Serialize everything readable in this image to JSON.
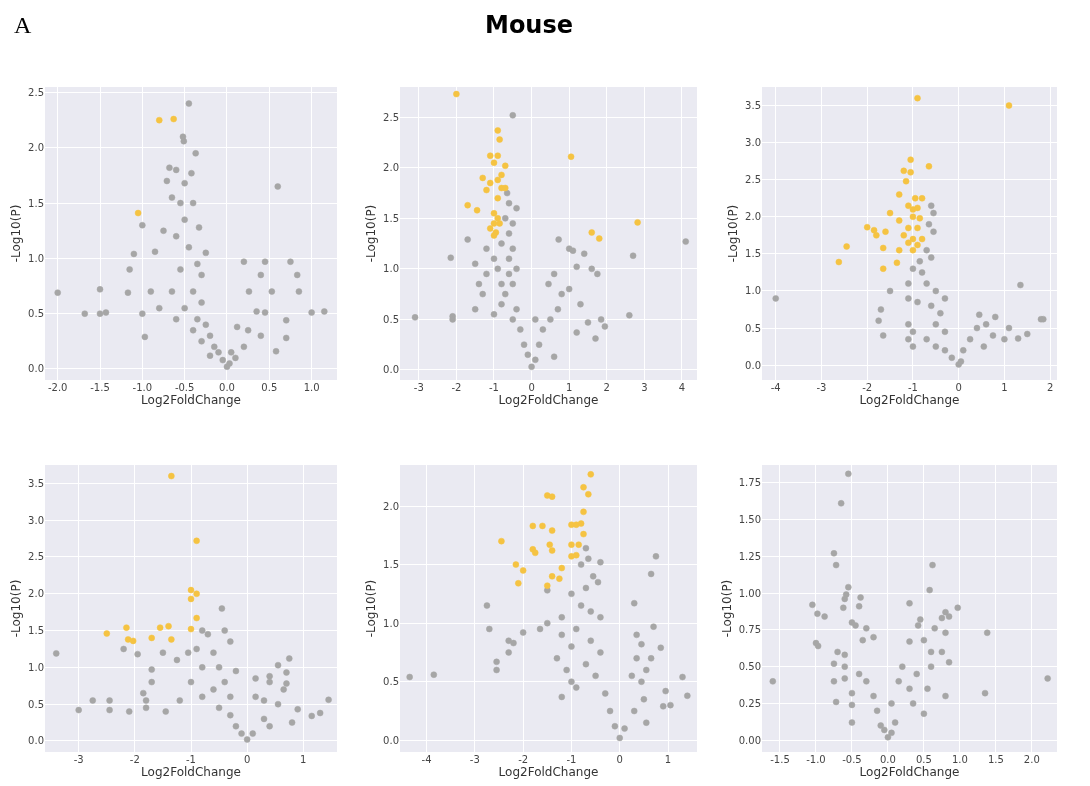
{
  "chart_data": [
    {
      "type": "scatter",
      "annotations": [
        "A"
      ],
      "xlabel": "Log2FoldChange",
      "ylabel": "-Log10(P)",
      "grid": true,
      "marker": "circle",
      "xlim": [
        -2.15,
        1.3
      ],
      "ylim": [
        -0.1,
        2.55
      ],
      "xticks": [
        {
          "value": -2,
          "label": "-2.0"
        },
        {
          "value": -1.5,
          "label": "-1.5"
        },
        {
          "value": -1,
          "label": "-1.0"
        },
        {
          "value": -0.5,
          "label": "-0.5"
        },
        {
          "value": 0,
          "label": "0.0"
        },
        {
          "value": 0.5,
          "label": "0.5"
        },
        {
          "value": 1,
          "label": "1.0"
        }
      ],
      "yticks": [
        {
          "value": 0,
          "label": "0.0"
        },
        0.5,
        {
          "value": 1,
          "label": "1.0"
        },
        1.5,
        {
          "value": 2,
          "label": "2.0"
        },
        2.5
      ],
      "series": [
        {
          "color": "#a6a6a6",
          "x": [
            -0.45,
            -0.52,
            -0.51,
            -0.37,
            -0.68,
            -0.6,
            -0.42,
            -0.71,
            -0.5,
            0.6,
            -0.65,
            -0.55,
            -0.4,
            -0.5,
            -1.0,
            -0.75,
            -0.33,
            -0.6,
            -0.45,
            -1.1,
            -0.85,
            -0.25,
            -0.35,
            0.2,
            0.45,
            0.75,
            -1.15,
            -0.55,
            -0.3,
            0.4,
            0.83,
            -2.0,
            -1.5,
            -1.17,
            -0.9,
            -0.65,
            -0.4,
            0.26,
            0.53,
            0.85,
            -0.3,
            -0.8,
            -0.5,
            -1.68,
            -1.5,
            -1.43,
            -1.0,
            -0.6,
            -0.35,
            -0.25,
            0.35,
            1.0,
            1.15,
            0.45,
            0.12,
            -0.4,
            -0.2,
            0.25,
            0.7,
            -0.97,
            -0.3,
            -0.15,
            0.4,
            0.7,
            0.58,
            -0.1,
            0.05,
            -0.05,
            0.0,
            0.03,
            -0.2,
            0.1,
            0.2
          ],
          "values": [
            2.4,
            2.1,
            2.06,
            1.95,
            1.82,
            1.8,
            1.77,
            1.7,
            1.68,
            1.65,
            1.55,
            1.5,
            1.5,
            1.35,
            1.3,
            1.25,
            1.28,
            1.2,
            1.1,
            1.04,
            1.06,
            1.05,
            0.95,
            0.97,
            0.97,
            0.97,
            0.9,
            0.9,
            0.85,
            0.85,
            0.85,
            0.69,
            0.72,
            0.69,
            0.7,
            0.7,
            0.7,
            0.7,
            0.7,
            0.7,
            0.6,
            0.55,
            0.55,
            0.5,
            0.5,
            0.51,
            0.5,
            0.45,
            0.45,
            0.4,
            0.52,
            0.51,
            0.52,
            0.51,
            0.38,
            0.35,
            0.3,
            0.35,
            0.44,
            0.29,
            0.25,
            0.2,
            0.3,
            0.28,
            0.16,
            0.15,
            0.15,
            0.08,
            0.02,
            0.05,
            0.12,
            0.1,
            0.2
          ]
        },
        {
          "color": "#f5c342",
          "x": [
            -0.8,
            -0.63,
            -1.05
          ],
          "values": [
            2.25,
            2.26,
            1.41
          ]
        }
      ]
    },
    {
      "type": "scatter",
      "title": "Mouse",
      "xlabel": "Log2FoldChange",
      "ylabel": "-Log10(P)",
      "grid": true,
      "marker": "circle",
      "xlim": [
        -3.5,
        4.4
      ],
      "ylim": [
        -0.1,
        2.8
      ],
      "xticks": [
        -3,
        -2,
        -1,
        0,
        1,
        2,
        3,
        4
      ],
      "yticks": [
        {
          "value": 0,
          "label": "0.0"
        },
        0.5,
        {
          "value": 1,
          "label": "1.0"
        },
        1.5,
        {
          "value": 2,
          "label": "2.0"
        },
        2.5
      ],
      "series": [
        {
          "color": "#a6a6a6",
          "x": [
            -0.5,
            -0.65,
            -0.6,
            -0.4,
            -0.7,
            -0.5,
            -0.6,
            -1.7,
            -0.8,
            0.72,
            4.1,
            -1.2,
            -0.5,
            1.0,
            1.1,
            -2.15,
            -1.0,
            -0.6,
            2.7,
            1.4,
            -1.5,
            -0.9,
            -0.4,
            1.2,
            1.6,
            -1.2,
            -0.6,
            0.6,
            1.75,
            -1.4,
            -0.8,
            -0.5,
            0.45,
            1.0,
            -1.3,
            -0.7,
            0.8,
            1.3,
            -1.5,
            -0.8,
            -0.4,
            0.7,
            -3.1,
            -2.1,
            -2.1,
            -1.0,
            -0.5,
            0.5,
            0.1,
            1.5,
            1.85,
            2.6,
            1.95,
            -0.3,
            0.3,
            1.2,
            1.7,
            -0.2,
            0.2,
            -0.1,
            0.1,
            0.0,
            0.6
          ],
          "values": [
            2.52,
            1.75,
            1.65,
            1.6,
            1.5,
            1.45,
            1.35,
            1.29,
            1.25,
            1.29,
            1.27,
            1.2,
            1.2,
            1.2,
            1.18,
            1.11,
            1.1,
            1.1,
            1.13,
            1.15,
            1.05,
            1.0,
            1.0,
            1.02,
            1.0,
            0.95,
            0.95,
            0.95,
            0.95,
            0.85,
            0.85,
            0.85,
            0.85,
            0.8,
            0.75,
            0.75,
            0.75,
            0.65,
            0.6,
            0.65,
            0.6,
            0.6,
            0.52,
            0.53,
            0.5,
            0.55,
            0.5,
            0.5,
            0.5,
            0.47,
            0.5,
            0.54,
            0.43,
            0.4,
            0.4,
            0.37,
            0.31,
            0.25,
            0.25,
            0.15,
            0.1,
            0.03,
            0.13
          ]
        },
        {
          "color": "#f5c342",
          "x": [
            -2.0,
            -0.9,
            -0.85,
            1.05,
            -1.1,
            -0.9,
            -1.0,
            -0.7,
            -1.3,
            -0.8,
            -1.1,
            -0.9,
            -0.8,
            -0.7,
            -1.2,
            -0.9,
            -1.7,
            -1.45,
            -1.0,
            -0.9,
            -1.0,
            -0.85,
            -1.1,
            -0.95,
            -1.0,
            2.82,
            1.6,
            1.8
          ],
          "values": [
            2.73,
            2.37,
            2.28,
            2.11,
            2.12,
            2.12,
            2.05,
            2.02,
            1.9,
            1.93,
            1.85,
            1.88,
            1.8,
            1.8,
            1.78,
            1.7,
            1.63,
            1.58,
            1.55,
            1.5,
            1.45,
            1.45,
            1.4,
            1.36,
            1.33,
            1.46,
            1.36,
            1.3
          ]
        }
      ]
    },
    {
      "type": "scatter",
      "xlabel": "Log2FoldChange",
      "ylabel": "-Log10(P)",
      "grid": true,
      "marker": "circle",
      "xlim": [
        -4.3,
        2.15
      ],
      "ylim": [
        -0.2,
        3.75
      ],
      "xticks": [
        -4,
        -3,
        -2,
        -1,
        0,
        1,
        2
      ],
      "yticks": [
        {
          "value": 0,
          "label": "0.0"
        },
        0.5,
        {
          "value": 1,
          "label": "1.0"
        },
        1.5,
        {
          "value": 2,
          "label": "2.0"
        },
        2.5,
        {
          "value": 3,
          "label": "3.0"
        },
        3.5
      ],
      "series": [
        {
          "color": "#a6a6a6",
          "x": [
            -0.6,
            -0.55,
            -0.65,
            -0.55,
            -0.7,
            -0.85,
            -0.6,
            -1.0,
            -0.8,
            -1.1,
            -0.7,
            -0.5,
            1.35,
            -1.5,
            -4.0,
            -1.1,
            -0.3,
            -0.9,
            -0.6,
            -1.7,
            -0.4,
            0.45,
            -1.75,
            -1.1,
            -0.5,
            0.8,
            1.8,
            1.85,
            0.6,
            -1.0,
            -0.3,
            0.4,
            1.1,
            -1.65,
            -1.1,
            -0.7,
            0.25,
            0.75,
            1.5,
            1.3,
            1.0,
            -1.0,
            -0.5,
            0.55,
            -0.3,
            0.1,
            -0.15,
            0.05,
            0.0
          ],
          "values": [
            2.15,
            2.05,
            1.9,
            1.8,
            1.55,
            1.4,
            1.45,
            1.3,
            1.25,
            1.1,
            1.1,
            1.0,
            1.08,
            1.0,
            0.9,
            0.9,
            0.9,
            0.85,
            0.8,
            0.75,
            0.7,
            0.68,
            0.6,
            0.55,
            0.55,
            0.65,
            0.62,
            0.62,
            0.55,
            0.45,
            0.45,
            0.5,
            0.5,
            0.4,
            0.35,
            0.35,
            0.35,
            0.4,
            0.42,
            0.36,
            0.35,
            0.25,
            0.25,
            0.25,
            0.2,
            0.2,
            0.1,
            0.05,
            0.01
          ]
        },
        {
          "color": "#f5c342",
          "x": [
            -0.9,
            1.1,
            -1.05,
            -0.65,
            -1.2,
            -1.05,
            -1.15,
            -1.3,
            -0.95,
            -0.8,
            -1.1,
            -1.0,
            -0.9,
            -1.5,
            -1.0,
            -0.85,
            -1.3,
            -2.0,
            -1.85,
            -1.1,
            -0.9,
            -1.8,
            -1.6,
            -1.2,
            -1.0,
            -0.8,
            -1.1,
            -0.9,
            -2.45,
            -1.65,
            -1.3,
            -1.0,
            -2.62,
            -1.35,
            -1.65
          ],
          "values": [
            3.6,
            3.5,
            2.77,
            2.68,
            2.62,
            2.6,
            2.48,
            2.3,
            2.25,
            2.25,
            2.15,
            2.1,
            2.12,
            2.05,
            2.0,
            1.98,
            1.95,
            1.86,
            1.82,
            1.85,
            1.85,
            1.75,
            1.8,
            1.75,
            1.7,
            1.7,
            1.65,
            1.62,
            1.6,
            1.58,
            1.55,
            1.55,
            1.39,
            1.38,
            1.3
          ]
        }
      ]
    },
    {
      "type": "scatter",
      "xlabel": "Log2FoldChange",
      "ylabel": "-Log10(P)",
      "grid": true,
      "marker": "circle",
      "xlim": [
        -3.6,
        1.6
      ],
      "ylim": [
        -0.15,
        3.75
      ],
      "xticks": [
        -3,
        -2,
        -1,
        0,
        1
      ],
      "yticks": [
        {
          "value": 0,
          "label": "0.0"
        },
        0.5,
        {
          "value": 1,
          "label": "1.0"
        },
        1.5,
        {
          "value": 2,
          "label": "2.0"
        },
        2.5,
        {
          "value": 3,
          "label": "3.0"
        },
        3.5
      ],
      "series": [
        {
          "color": "#a6a6a6",
          "x": [
            -0.45,
            -0.8,
            -0.4,
            -0.7,
            -0.3,
            -0.9,
            -1.05,
            -2.2,
            -3.4,
            -1.95,
            -1.5,
            -0.6,
            0.75,
            -1.25,
            -0.8,
            -0.5,
            0.55,
            -1.7,
            -0.2,
            0.7,
            0.4,
            0.15,
            -1.0,
            -0.4,
            0.4,
            0.7,
            -1.7,
            -0.6,
            0.65,
            -1.85,
            -0.8,
            -0.3,
            0.15,
            -2.75,
            -2.45,
            -1.8,
            -1.2,
            0.3,
            1.45,
            -3.0,
            -2.45,
            -2.1,
            -1.8,
            -1.45,
            -0.5,
            0.55,
            0.9,
            1.3,
            1.15,
            -0.3,
            0.3,
            0.8,
            -0.2,
            0.4,
            -0.1,
            0.1,
            0.0
          ],
          "values": [
            1.8,
            1.5,
            1.5,
            1.45,
            1.35,
            1.25,
            1.2,
            1.25,
            1.19,
            1.18,
            1.2,
            1.2,
            1.12,
            1.1,
            1.0,
            1.0,
            1.03,
            0.97,
            0.95,
            0.93,
            0.88,
            0.85,
            0.8,
            0.8,
            0.8,
            0.78,
            0.8,
            0.7,
            0.7,
            0.65,
            0.6,
            0.6,
            0.6,
            0.55,
            0.55,
            0.55,
            0.55,
            0.55,
            0.56,
            0.42,
            0.42,
            0.4,
            0.45,
            0.4,
            0.45,
            0.5,
            0.43,
            0.38,
            0.34,
            0.35,
            0.3,
            0.25,
            0.2,
            0.2,
            0.1,
            0.1,
            0.02
          ]
        },
        {
          "color": "#f5c342",
          "x": [
            -1.35,
            -0.9,
            -1.0,
            -0.9,
            -1.0,
            -0.9,
            -2.5,
            -2.15,
            -1.55,
            -1.4,
            -1.0,
            -2.12,
            -2.03,
            -1.7,
            -1.35
          ],
          "values": [
            3.6,
            2.72,
            2.05,
            2.0,
            1.93,
            1.67,
            1.46,
            1.54,
            1.54,
            1.56,
            1.52,
            1.38,
            1.36,
            1.4,
            1.38
          ]
        }
      ]
    },
    {
      "type": "scatter",
      "xlabel": "Log2FoldChange",
      "ylabel": "-Log10(P)",
      "grid": true,
      "marker": "circle",
      "xlim": [
        -4.55,
        1.6
      ],
      "ylim": [
        -0.1,
        2.35
      ],
      "xticks": [
        -4,
        -3,
        -2,
        -1,
        0,
        1
      ],
      "yticks": [
        {
          "value": 0,
          "label": "0.0"
        },
        0.5,
        {
          "value": 1,
          "label": "1.0"
        },
        1.5,
        {
          "value": 2,
          "label": "2.0"
        }
      ],
      "series": [
        {
          "color": "#a6a6a6",
          "x": [
            -0.7,
            0.75,
            -0.65,
            -0.4,
            -0.8,
            0.65,
            -0.55,
            -0.7,
            -0.45,
            -1.5,
            -1.0,
            -2.75,
            0.3,
            -0.8,
            -0.6,
            -1.2,
            -0.4,
            -1.5,
            -2.7,
            -1.65,
            -0.9,
            0.7,
            -2.0,
            -1.2,
            0.35,
            -2.3,
            -2.2,
            -0.6,
            0.45,
            0.85,
            -2.3,
            -1.0,
            -0.4,
            0.35,
            0.65,
            -1.3,
            -2.55,
            -0.7,
            -2.55,
            -1.1,
            0.55,
            -4.35,
            -3.85,
            -0.5,
            0.25,
            1.3,
            -1.0,
            0.45,
            -1.2,
            -0.9,
            -0.3,
            0.95,
            1.4,
            0.5,
            1.05,
            0.9,
            -0.2,
            0.3,
            -0.1,
            0.1,
            0.0,
            0.55
          ],
          "values": [
            1.64,
            1.57,
            1.55,
            1.52,
            1.5,
            1.42,
            1.4,
            1.3,
            1.35,
            1.28,
            1.25,
            1.15,
            1.17,
            1.15,
            1.1,
            1.05,
            1.05,
            1.0,
            0.95,
            0.95,
            0.95,
            0.97,
            0.92,
            0.9,
            0.9,
            0.85,
            0.83,
            0.85,
            0.82,
            0.79,
            0.75,
            0.8,
            0.75,
            0.7,
            0.7,
            0.7,
            0.67,
            0.65,
            0.6,
            0.6,
            0.6,
            0.54,
            0.56,
            0.55,
            0.55,
            0.54,
            0.5,
            0.5,
            0.37,
            0.45,
            0.4,
            0.42,
            0.38,
            0.35,
            0.3,
            0.29,
            0.25,
            0.25,
            0.12,
            0.1,
            0.02,
            0.15
          ]
        },
        {
          "color": "#f5c342",
          "x": [
            -0.6,
            -0.75,
            -0.65,
            -1.5,
            -1.4,
            -0.75,
            -1.8,
            -1.6,
            -1.0,
            -0.9,
            -0.8,
            -1.4,
            -0.75,
            -2.45,
            -1.45,
            -1.0,
            -0.85,
            -1.8,
            -1.4,
            -1.75,
            -1.0,
            -0.9,
            -2.15,
            -1.2,
            -2.0,
            -1.4,
            -1.25,
            -2.1,
            -1.5
          ],
          "values": [
            2.27,
            2.16,
            2.1,
            2.09,
            2.08,
            1.95,
            1.83,
            1.83,
            1.84,
            1.84,
            1.85,
            1.79,
            1.76,
            1.7,
            1.67,
            1.67,
            1.67,
            1.63,
            1.62,
            1.6,
            1.57,
            1.58,
            1.5,
            1.47,
            1.45,
            1.4,
            1.38,
            1.34,
            1.32
          ]
        }
      ]
    },
    {
      "type": "scatter",
      "xlabel": "Log2FoldChange",
      "ylabel": "-Log10(P)",
      "grid": true,
      "marker": "circle",
      "xlim": [
        -1.75,
        2.35
      ],
      "ylim": [
        -0.08,
        1.87
      ],
      "xticks": [
        {
          "value": -1.5,
          "label": "-1.5"
        },
        {
          "value": -1,
          "label": "-1.0"
        },
        {
          "value": -0.5,
          "label": "-0.5"
        },
        {
          "value": 0,
          "label": "0.0"
        },
        {
          "value": 0.5,
          "label": "0.5"
        },
        {
          "value": 1,
          "label": "1.0"
        },
        {
          "value": 1.5,
          "label": "1.5"
        },
        {
          "value": 2,
          "label": "2.0"
        }
      ],
      "yticks": [
        {
          "value": 0,
          "label": "0.00"
        },
        0.25,
        {
          "value": 0.5,
          "label": "0.50"
        },
        0.75,
        {
          "value": 1,
          "label": "1.00"
        },
        1.25,
        {
          "value": 1.5,
          "label": "1.50"
        },
        1.75
      ],
      "series": [
        {
          "color": "#a6a6a6",
          "x": [
            -0.55,
            -0.65,
            -0.75,
            -0.72,
            0.62,
            0.58,
            -0.55,
            -0.58,
            -0.6,
            -0.38,
            -1.05,
            -0.62,
            -0.4,
            0.3,
            0.97,
            -0.98,
            -0.88,
            0.8,
            0.85,
            0.75,
            0.45,
            -0.5,
            -0.45,
            1.38,
            0.8,
            0.42,
            -0.3,
            0.65,
            -0.2,
            -1.0,
            -0.97,
            -0.35,
            0.3,
            0.5,
            -0.7,
            0.75,
            -0.6,
            0.6,
            0.85,
            -0.75,
            -0.6,
            0.2,
            0.6,
            0.4,
            -0.4,
            -1.6,
            2.22,
            -0.75,
            -0.6,
            -0.3,
            0.15,
            0.3,
            0.55,
            -0.5,
            -0.2,
            0.8,
            1.35,
            -0.72,
            -0.5,
            0.05,
            0.35,
            -0.15,
            0.5,
            -0.5,
            -0.1,
            0.1,
            0.0,
            0.05,
            -0.05
          ],
          "values": [
            1.81,
            1.61,
            1.27,
            1.19,
            1.19,
            1.02,
            1.04,
            0.99,
            0.96,
            0.97,
            0.92,
            0.9,
            0.91,
            0.93,
            0.9,
            0.86,
            0.84,
            0.87,
            0.84,
            0.83,
            0.82,
            0.8,
            0.78,
            0.73,
            0.73,
            0.78,
            0.76,
            0.76,
            0.7,
            0.66,
            0.64,
            0.68,
            0.67,
            0.68,
            0.6,
            0.6,
            0.58,
            0.6,
            0.53,
            0.52,
            0.5,
            0.5,
            0.5,
            0.45,
            0.45,
            0.4,
            0.42,
            0.4,
            0.42,
            0.4,
            0.4,
            0.35,
            0.35,
            0.32,
            0.3,
            0.3,
            0.32,
            0.26,
            0.24,
            0.25,
            0.25,
            0.2,
            0.18,
            0.12,
            0.1,
            0.12,
            0.02,
            0.05,
            0.07
          ]
        }
      ]
    }
  ]
}
